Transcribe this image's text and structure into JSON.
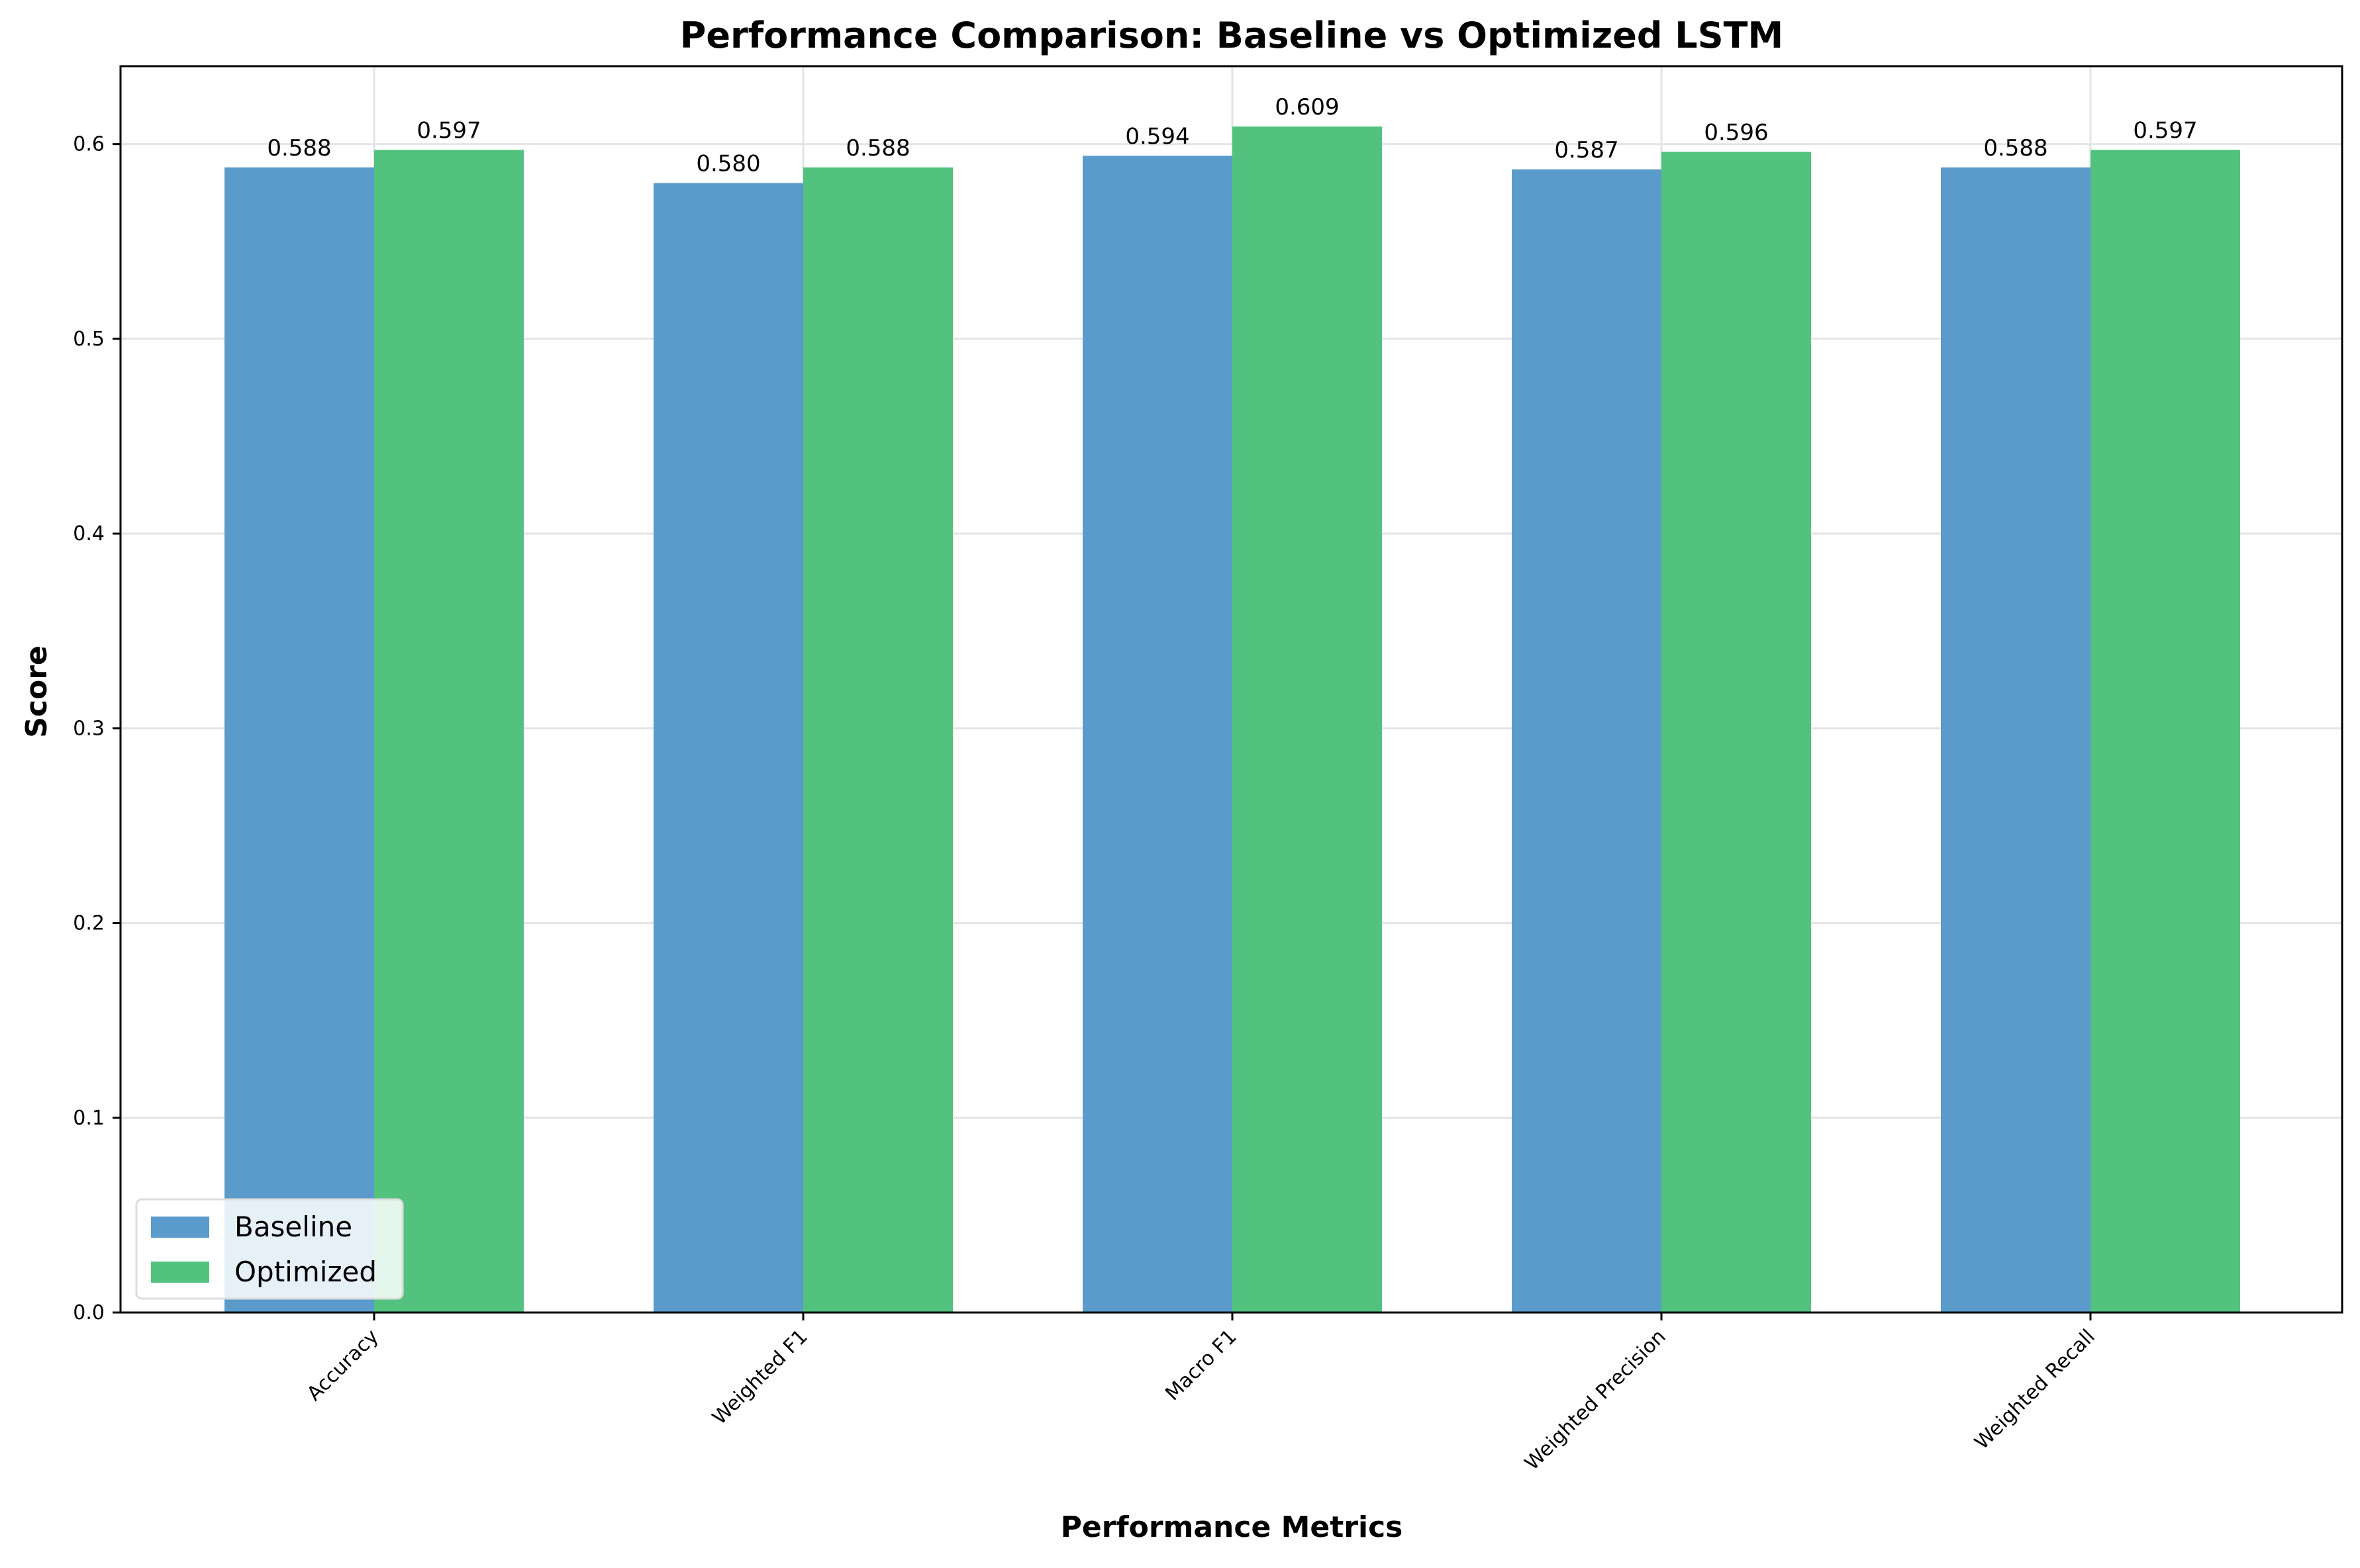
{
  "chart_data": {
    "type": "bar",
    "title": "Performance Comparison: Baseline vs Optimized LSTM",
    "xlabel": "Performance Metrics",
    "ylabel": "Score",
    "categories": [
      "Accuracy",
      "Weighted F1",
      "Macro F1",
      "Weighted Precision",
      "Weighted Recall"
    ],
    "series": [
      {
        "name": "Baseline",
        "color": "#5a9bcb",
        "values": [
          0.588,
          0.58,
          0.594,
          0.587,
          0.588
        ],
        "labels": [
          "0.588",
          "0.580",
          "0.594",
          "0.587",
          "0.588"
        ]
      },
      {
        "name": "Optimized",
        "color": "#53c27f",
        "values": [
          0.597,
          0.588,
          0.609,
          0.596,
          0.597
        ],
        "labels": [
          "0.597",
          "0.588",
          "0.609",
          "0.596",
          "0.597"
        ]
      }
    ],
    "ylim": [
      0,
      0.64
    ],
    "yticks": [
      0.0,
      0.1,
      0.2,
      0.3,
      0.4,
      0.5,
      0.6
    ],
    "ytick_labels": [
      "0.0",
      "0.1",
      "0.2",
      "0.3",
      "0.4",
      "0.5",
      "0.6"
    ],
    "grid": true,
    "legend_position": "lower-left"
  }
}
